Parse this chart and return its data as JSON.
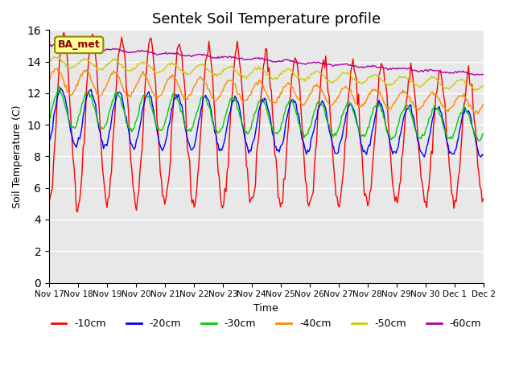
{
  "title": "Sentek Soil Temperature profile",
  "xlabel": "Time",
  "ylabel": "Soil Temperature (C)",
  "ylim": [
    0,
    16
  ],
  "yticks": [
    0,
    2,
    4,
    6,
    8,
    10,
    12,
    14,
    16
  ],
  "bg_color": "#e8e8e8",
  "legend_label": "BA_met",
  "depths": [
    "-10cm",
    "-20cm",
    "-30cm",
    "-40cm",
    "-50cm",
    "-60cm"
  ],
  "colors": [
    "#ff0000",
    "#0000ff",
    "#00cc00",
    "#ff8800",
    "#cccc00",
    "#aa00aa"
  ],
  "xtick_labels": [
    "Nov 17",
    "Nov 18",
    "Nov 19",
    "Nov 20",
    "Nov 21",
    "Nov 22",
    "Nov 23",
    "Nov 24",
    "Nov 25",
    "Nov 26",
    "Nov 27",
    "Nov 28",
    "Nov 29",
    "Nov 30",
    "Dec 1",
    "Dec 2"
  ],
  "n_points": 384,
  "duration_days": 15
}
